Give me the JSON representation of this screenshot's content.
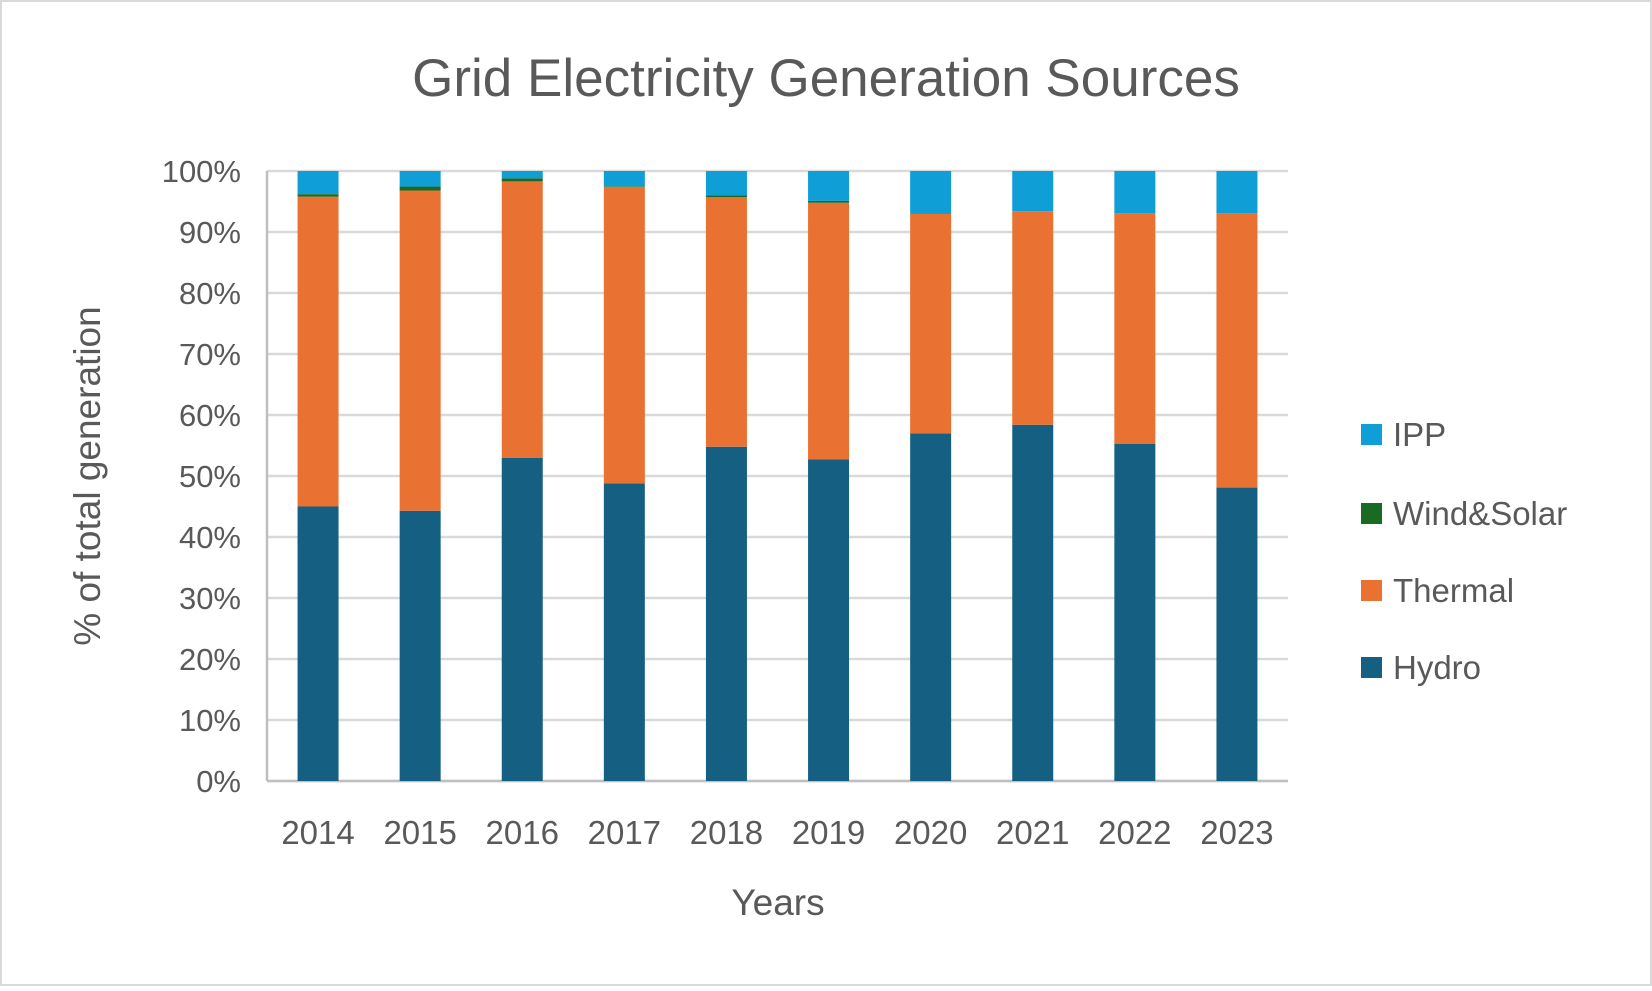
{
  "chart_data": {
    "type": "bar",
    "stacked": "percent",
    "title": "Grid Electricity Generation Sources",
    "xlabel": "Years",
    "ylabel": "% of total generation",
    "ylim": [
      0,
      100
    ],
    "yticks": [
      "0%",
      "10%",
      "20%",
      "30%",
      "40%",
      "50%",
      "60%",
      "70%",
      "80%",
      "90%",
      "100%"
    ],
    "grid": true,
    "legend_position": "right",
    "categories": [
      "2014",
      "2015",
      "2016",
      "2017",
      "2018",
      "2019",
      "2020",
      "2021",
      "2022",
      "2023"
    ],
    "series": [
      {
        "name": "Hydro",
        "color": "#156082",
        "values": [
          45.0,
          44.3,
          53.0,
          48.8,
          54.8,
          52.7,
          57.0,
          58.4,
          55.3,
          48.1
        ]
      },
      {
        "name": "Thermal",
        "color": "#E97132",
        "values": [
          50.8,
          52.5,
          45.3,
          48.6,
          40.9,
          42.1,
          36.0,
          35.0,
          37.8,
          45.0
        ]
      },
      {
        "name": "Wind&Solar",
        "color": "#196B24",
        "values": [
          0.4,
          0.65,
          0.5,
          0.1,
          0.3,
          0.3,
          0.1,
          0.0,
          0.0,
          0.0
        ]
      },
      {
        "name": "IPP",
        "color": "#0F9ED5",
        "values": [
          3.8,
          2.55,
          1.2,
          2.5,
          4.0,
          4.9,
          6.9,
          6.6,
          6.9,
          6.9
        ]
      }
    ]
  }
}
